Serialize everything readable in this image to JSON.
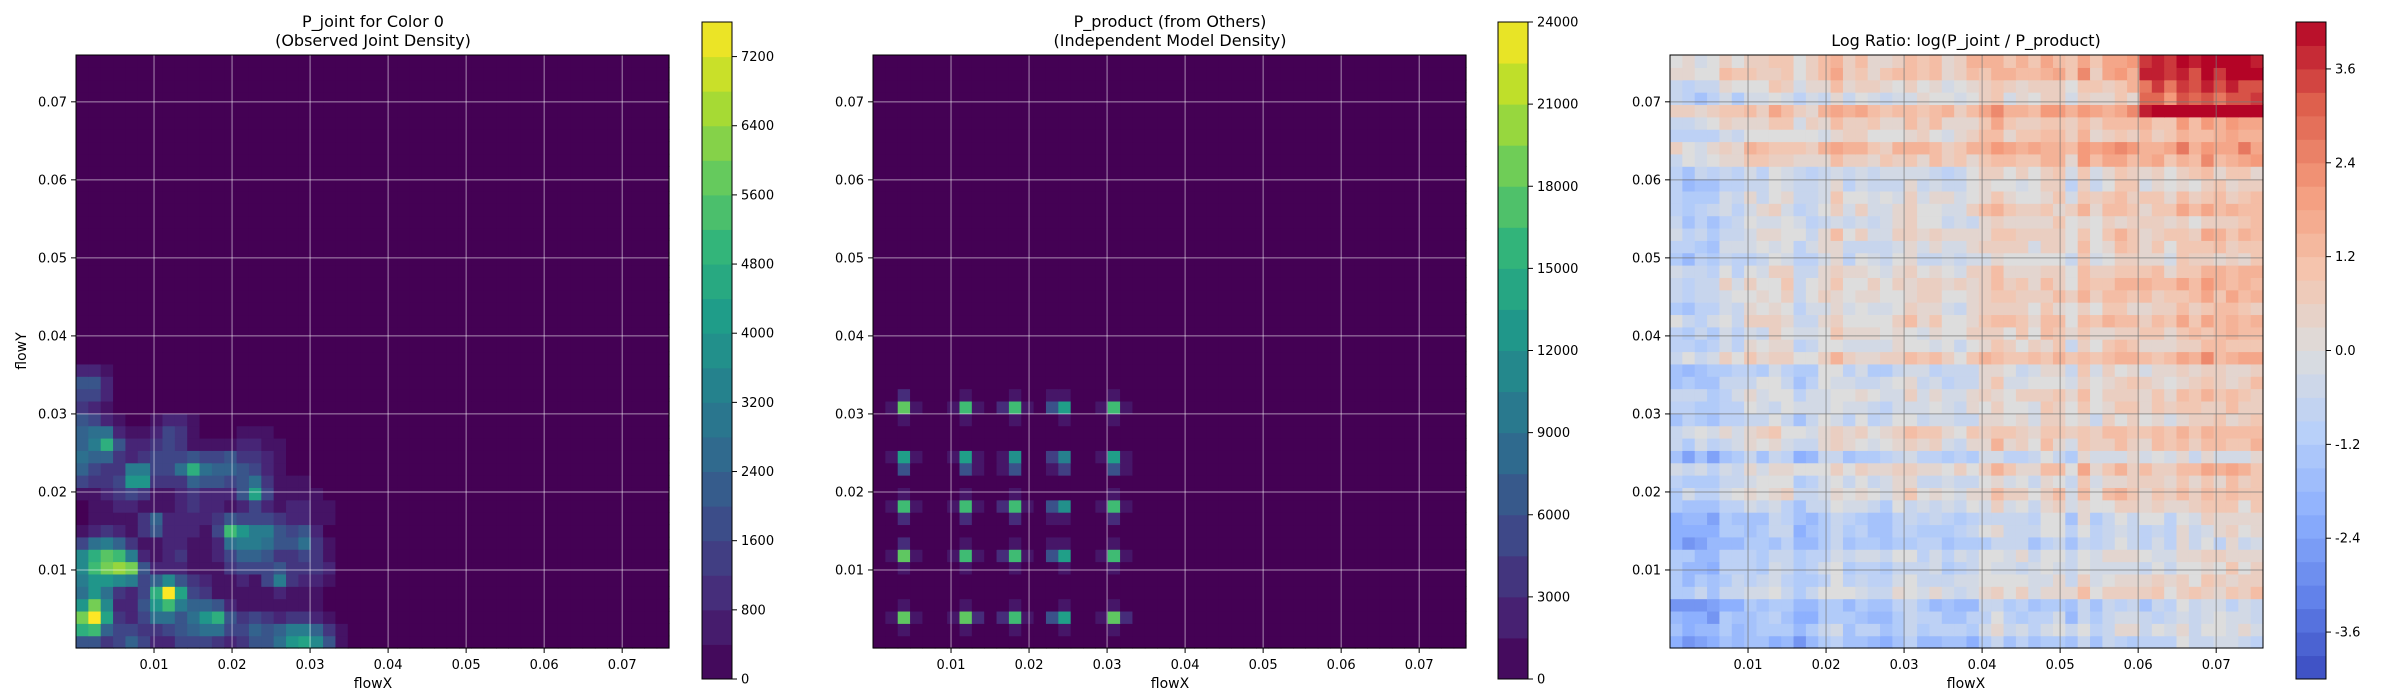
{
  "chart_data": [
    {
      "type": "heatmap",
      "title": "P_joint for Color 0",
      "subtitle": "(Observed Joint Density)",
      "xlabel": "flowX",
      "ylabel": "flowY",
      "xlim": [
        0,
        0.076
      ],
      "ylim": [
        0,
        0.076
      ],
      "xticks": [
        "0.01",
        "0.02",
        "0.03",
        "0.04",
        "0.05",
        "0.06",
        "0.07"
      ],
      "yticks": [
        "0.01",
        "0.02",
        "0.03",
        "0.04",
        "0.05",
        "0.06",
        "0.07"
      ],
      "grid": true,
      "colormap": "viridis",
      "colorbar": {
        "min": 0,
        "max": 7600,
        "ticks": [
          "0",
          "800",
          "1600",
          "2400",
          "3200",
          "4000",
          "4800",
          "5600",
          "6400",
          "7200"
        ]
      },
      "description_values": {
        "background_level": 0,
        "hotspots": [
          {
            "x": 0.004,
            "y": 0.026,
            "v": 3600
          },
          {
            "x": 0.008,
            "y": 0.022,
            "v": 4200
          },
          {
            "x": 0.012,
            "y": 0.007,
            "v": 6800
          },
          {
            "x": 0.015,
            "y": 0.023,
            "v": 3800
          },
          {
            "x": 0.02,
            "y": 0.015,
            "v": 4600
          },
          {
            "x": 0.007,
            "y": 0.01,
            "v": 3400
          },
          {
            "x": 0.003,
            "y": 0.004,
            "v": 3000
          },
          {
            "x": 0.023,
            "y": 0.02,
            "v": 3500
          },
          {
            "x": 0.026,
            "y": 0.009,
            "v": 3000
          },
          {
            "x": 0.018,
            "y": 0.004,
            "v": 3200
          },
          {
            "x": 0.01,
            "y": 0.016,
            "v": 2800
          },
          {
            "x": 0.029,
            "y": 0.014,
            "v": 2500
          }
        ]
      }
    },
    {
      "type": "heatmap",
      "title": "P_product (from Others)",
      "subtitle": "(Independent Model Density)",
      "xlabel": "flowX",
      "ylabel": "",
      "xlim": [
        0,
        0.076
      ],
      "ylim": [
        0,
        0.076
      ],
      "xticks": [
        "0.01",
        "0.02",
        "0.03",
        "0.04",
        "0.05",
        "0.06",
        "0.07"
      ],
      "yticks": [
        "0.01",
        "0.02",
        "0.03",
        "0.04",
        "0.05",
        "0.06",
        "0.07"
      ],
      "grid": true,
      "colormap": "viridis",
      "colorbar": {
        "min": 0,
        "max": 24000,
        "ticks": [
          "0",
          "3000",
          "6000",
          "9000",
          "12000",
          "15000",
          "18000",
          "21000",
          "24000"
        ]
      },
      "marginal_peaks_x": [
        0.004,
        0.012,
        0.018,
        0.024,
        0.031
      ],
      "marginal_peaks_y": [
        0.004,
        0.012,
        0.018,
        0.024,
        0.031
      ],
      "peak_max": 17000
    },
    {
      "type": "heatmap",
      "title": "Log Ratio: log(P_joint / P_product)",
      "xlabel": "flowX",
      "ylabel": "",
      "xlim": [
        0,
        0.076
      ],
      "ylim": [
        0,
        0.076
      ],
      "xticks": [
        "0.01",
        "0.02",
        "0.03",
        "0.04",
        "0.05",
        "0.06",
        "0.07"
      ],
      "yticks": [
        "0.01",
        "0.02",
        "0.03",
        "0.04",
        "0.05",
        "0.06",
        "0.07"
      ],
      "grid": true,
      "colormap": "coolwarm",
      "colorbar": {
        "min": -4.2,
        "max": 4.2,
        "ticks": [
          "-3.6",
          "-2.4",
          "-1.2",
          "0.0",
          "1.2",
          "2.4",
          "3.6"
        ]
      },
      "trend": "negative (blue) toward low flowX/low flowY, positive (red) toward high flowX/high flowY"
    }
  ]
}
